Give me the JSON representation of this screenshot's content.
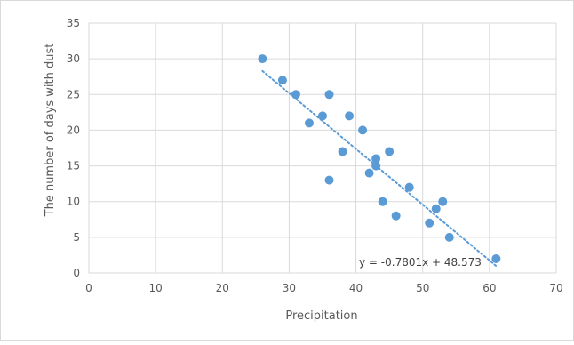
{
  "chart_data": {
    "type": "scatter",
    "title": "",
    "xlabel": "Precipitation",
    "ylabel": "The number of days with dust",
    "xlim": [
      0,
      70
    ],
    "ylim": [
      0,
      35
    ],
    "x_ticks": [
      "0",
      "10",
      "20",
      "30",
      "40",
      "50",
      "60",
      "70"
    ],
    "y_ticks": [
      "0",
      "5",
      "10",
      "15",
      "20",
      "25",
      "30",
      "35"
    ],
    "grid": true,
    "legend": "none",
    "series": [
      {
        "points": [
          {
            "x": 26,
            "y": 30
          },
          {
            "x": 29,
            "y": 27
          },
          {
            "x": 31,
            "y": 25
          },
          {
            "x": 33,
            "y": 21
          },
          {
            "x": 35,
            "y": 22
          },
          {
            "x": 36,
            "y": 25
          },
          {
            "x": 36,
            "y": 13
          },
          {
            "x": 38,
            "y": 17
          },
          {
            "x": 39,
            "y": 22
          },
          {
            "x": 41,
            "y": 20
          },
          {
            "x": 42,
            "y": 14
          },
          {
            "x": 43,
            "y": 16
          },
          {
            "x": 43,
            "y": 15
          },
          {
            "x": 44,
            "y": 10
          },
          {
            "x": 45,
            "y": 17
          },
          {
            "x": 46,
            "y": 8
          },
          {
            "x": 48,
            "y": 12
          },
          {
            "x": 51,
            "y": 7
          },
          {
            "x": 52,
            "y": 9
          },
          {
            "x": 53,
            "y": 10
          },
          {
            "x": 54,
            "y": 5
          },
          {
            "x": 61,
            "y": 2
          }
        ]
      }
    ],
    "trendline": {
      "slope": -0.7801,
      "intercept": 48.573,
      "x_range": [
        26,
        61
      ],
      "equation_label": "y = -0.7801x + 48.573"
    },
    "colors": {
      "marker": "#5b9bd5",
      "trendline": "#5b9bd5",
      "grid": "#d9d9d9",
      "text": "#595959"
    }
  }
}
